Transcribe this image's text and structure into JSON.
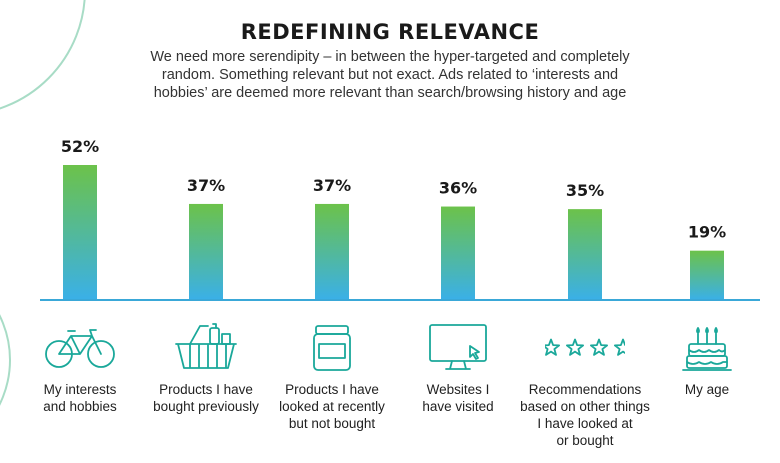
{
  "header": {
    "title": "REDEFINING RELEVANCE",
    "subtitle": "We need more serendipity – in between the hyper-targeted and completely random. Something relevant but not exact. Ads related to ‘interests and hobbies’ are deemed more relevant than search/browsing history and age"
  },
  "colors": {
    "bar_top": "#6cc24a",
    "bar_bottom": "#3ab0e8",
    "axis": "#3aa8d8",
    "icon": "#1aa89a",
    "deco_ring": "#a8dcc6"
  },
  "chart_data": {
    "type": "bar",
    "categories": [
      "My interests and hobbies",
      "Products I have bought previously",
      "Products I have looked at recently but not bought",
      "Websites I have visited",
      "Recommendations based on other things I have looked at or bought",
      "My age"
    ],
    "values": [
      52,
      37,
      37,
      36,
      35,
      19
    ],
    "value_labels": [
      "52%",
      "37%",
      "37%",
      "36%",
      "35%",
      "19%"
    ],
    "ylim": [
      0,
      60
    ],
    "grid": false,
    "legend": "none"
  },
  "categories": [
    {
      "lines": [
        "My interests",
        "and hobbies"
      ],
      "icon": "bicycle-icon"
    },
    {
      "lines": [
        "Products I have",
        "bought previously"
      ],
      "icon": "shopping-basket-icon"
    },
    {
      "lines": [
        "Products I have",
        "looked at recently",
        "but not bought"
      ],
      "icon": "jar-icon"
    },
    {
      "lines": [
        "Websites I",
        "have visited"
      ],
      "icon": "monitor-cursor-icon"
    },
    {
      "lines": [
        "Recommendations",
        "based on other things",
        "I have looked at",
        "or bought"
      ],
      "icon": "stars-icon"
    },
    {
      "lines": [
        "My age"
      ],
      "icon": "birthday-cake-icon"
    }
  ]
}
